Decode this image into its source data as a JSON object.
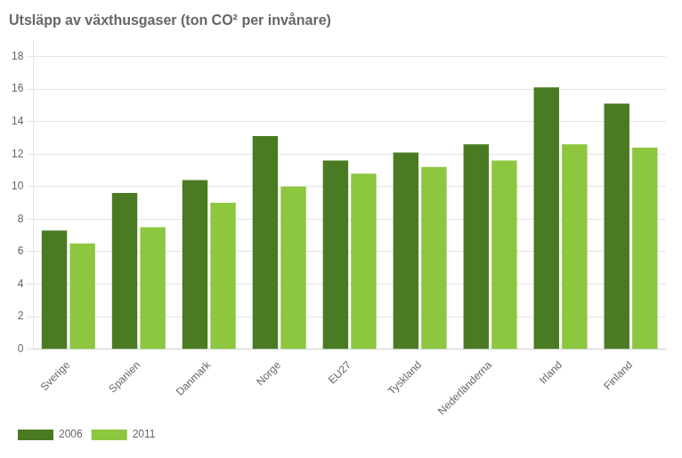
{
  "chart_data": {
    "type": "bar",
    "title": "Utsläpp av växthusgaser (ton CO² per invånare)",
    "categories": [
      "Sverige",
      "Spanien",
      "Danmark",
      "Norge",
      "EU27",
      "Tyskland",
      "Nederländerna",
      "Irland",
      "Finland"
    ],
    "series": [
      {
        "name": "2006",
        "color": "#4a7a22",
        "values": [
          7.3,
          9.6,
          10.4,
          13.1,
          11.6,
          12.1,
          12.6,
          16.1,
          15.1
        ]
      },
      {
        "name": "2011",
        "color": "#8dc63f",
        "values": [
          6.5,
          7.5,
          9.0,
          10.0,
          10.8,
          11.2,
          11.6,
          12.6,
          12.4
        ]
      }
    ],
    "ylim": [
      0,
      19
    ],
    "yticks": [
      0,
      2,
      4,
      6,
      8,
      10,
      12,
      14,
      16,
      18
    ],
    "grid": true,
    "legend": "bottom"
  }
}
